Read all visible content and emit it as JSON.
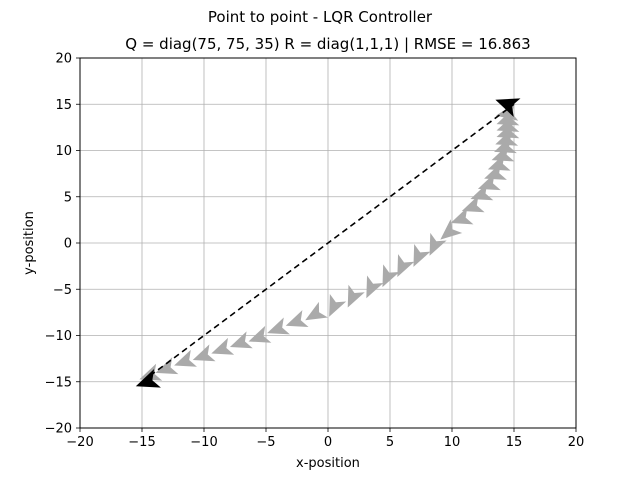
{
  "chart_data": {
    "type": "scatter",
    "title": "Point to point - LQR Controller",
    "subtitle": "Q = diag(75, 75, 35) R = diag(1,1,1) | RMSE = 16.863",
    "xlabel": "x-position",
    "ylabel": "y-position",
    "xlim": [
      -20,
      20
    ],
    "ylim": [
      -20,
      20
    ],
    "xticks": [
      -20,
      -15,
      -10,
      -5,
      0,
      5,
      10,
      15,
      20
    ],
    "yticks": [
      -20,
      -15,
      -10,
      -5,
      0,
      5,
      10,
      15,
      20
    ],
    "xtick_labels": [
      "−20",
      "−15",
      "−10",
      "−5",
      "0",
      "5",
      "10",
      "15",
      "20"
    ],
    "ytick_labels": [
      "−20",
      "−15",
      "−10",
      "−5",
      "0",
      "5",
      "10",
      "15",
      "20"
    ],
    "grid": true,
    "colors": {
      "trajectory": "#aaaaaa",
      "endpoints": "#000000",
      "reference": "#000000",
      "grid": "#b0b0b0"
    },
    "reference_line": {
      "x": [
        -15,
        15
      ],
      "y": [
        -15,
        15
      ],
      "style": "dashed"
    },
    "endpoints": [
      {
        "x": -14.5,
        "y": -15.0,
        "heading_deg": 200
      },
      {
        "x": 14.5,
        "y": 15.0,
        "heading_deg": 160
      }
    ],
    "trajectory": [
      {
        "x": -14.3,
        "y": -14.3,
        "heading_deg": 200
      },
      {
        "x": -13.0,
        "y": -13.6,
        "heading_deg": 200
      },
      {
        "x": -11.5,
        "y": -12.8,
        "heading_deg": 200
      },
      {
        "x": -10.0,
        "y": -12.2,
        "heading_deg": 200
      },
      {
        "x": -8.5,
        "y": -11.5,
        "heading_deg": 200
      },
      {
        "x": -7.0,
        "y": -10.8,
        "heading_deg": 200
      },
      {
        "x": -5.5,
        "y": -10.2,
        "heading_deg": 200
      },
      {
        "x": -4.0,
        "y": -9.3,
        "heading_deg": 200
      },
      {
        "x": -2.5,
        "y": -8.5,
        "heading_deg": 200
      },
      {
        "x": -1.0,
        "y": -7.7,
        "heading_deg": 210
      },
      {
        "x": 0.5,
        "y": -6.8,
        "heading_deg": 245
      },
      {
        "x": 2.0,
        "y": -5.8,
        "heading_deg": 245
      },
      {
        "x": 3.5,
        "y": -4.8,
        "heading_deg": 245
      },
      {
        "x": 4.8,
        "y": -3.6,
        "heading_deg": 245
      },
      {
        "x": 6.0,
        "y": -2.5,
        "heading_deg": 245
      },
      {
        "x": 7.3,
        "y": -1.4,
        "heading_deg": 245
      },
      {
        "x": 8.6,
        "y": -0.2,
        "heading_deg": 245
      },
      {
        "x": 9.8,
        "y": 1.2,
        "heading_deg": 220
      },
      {
        "x": 10.8,
        "y": 2.6,
        "heading_deg": 200
      },
      {
        "x": 11.7,
        "y": 3.9,
        "heading_deg": 200
      },
      {
        "x": 12.4,
        "y": 5.2,
        "heading_deg": 200
      },
      {
        "x": 13.0,
        "y": 6.3,
        "heading_deg": 200
      },
      {
        "x": 13.5,
        "y": 7.4,
        "heading_deg": 200
      },
      {
        "x": 13.8,
        "y": 8.4,
        "heading_deg": 200
      },
      {
        "x": 14.1,
        "y": 9.4,
        "heading_deg": 200
      },
      {
        "x": 14.3,
        "y": 10.3,
        "heading_deg": 200
      },
      {
        "x": 14.4,
        "y": 11.1,
        "heading_deg": 200
      },
      {
        "x": 14.5,
        "y": 11.9,
        "heading_deg": 200
      },
      {
        "x": 14.5,
        "y": 12.6,
        "heading_deg": 200
      },
      {
        "x": 14.5,
        "y": 13.3,
        "heading_deg": 200
      },
      {
        "x": 14.5,
        "y": 14.0,
        "heading_deg": 190
      }
    ]
  }
}
